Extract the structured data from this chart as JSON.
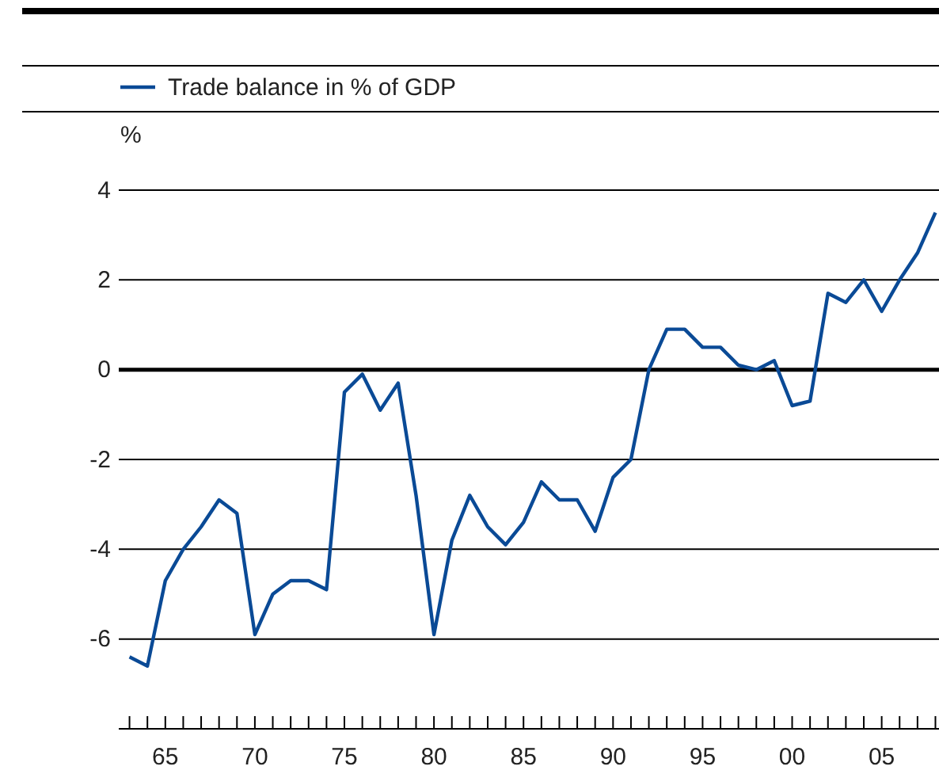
{
  "chart_data": {
    "type": "line",
    "ylabel": "%",
    "legend": "top left",
    "grid": "y",
    "line_style": "solid",
    "marker": "none",
    "x": [
      1963,
      1964,
      1965,
      1966,
      1967,
      1968,
      1969,
      1970,
      1971,
      1972,
      1973,
      1974,
      1975,
      1976,
      1977,
      1978,
      1979,
      1980,
      1981,
      1982,
      1983,
      1984,
      1985,
      1986,
      1987,
      1988,
      1989,
      1990,
      1991,
      1992,
      1993,
      1994,
      1995,
      1996,
      1997,
      1998,
      1999,
      2000,
      2001,
      2002,
      2003,
      2004,
      2005,
      2006,
      2007,
      2008
    ],
    "series": [
      {
        "name": "Trade balance in % of GDP",
        "color": "#0a4a96",
        "values": [
          -6.4,
          -6.6,
          -4.7,
          -4.0,
          -3.5,
          -2.9,
          -3.2,
          -5.9,
          -5.0,
          -4.7,
          -4.7,
          -4.9,
          -0.5,
          -0.1,
          -0.9,
          -0.3,
          -2.8,
          -5.9,
          -3.8,
          -2.8,
          -3.5,
          -3.9,
          -3.4,
          -2.5,
          -2.9,
          -2.9,
          -3.6,
          -2.4,
          -2.0,
          0.0,
          0.9,
          0.9,
          0.5,
          0.5,
          0.1,
          0.0,
          0.2,
          -0.8,
          -0.7,
          1.7,
          1.5,
          2.0,
          1.3,
          2.0,
          2.6,
          3.5
        ]
      }
    ],
    "xlim": [
      1962.4,
      2008.2
    ],
    "ylim": [
      -8,
      4
    ],
    "yticks": [
      -6,
      -4,
      -2,
      0,
      2,
      4
    ],
    "ref_lines": [
      {
        "axis": "y",
        "value": 0,
        "color": "#000000"
      }
    ],
    "xticks": [
      {
        "value": 1965,
        "label": "65"
      },
      {
        "value": 1970,
        "label": "70"
      },
      {
        "value": 1975,
        "label": "75"
      },
      {
        "value": 1980,
        "label": "80"
      },
      {
        "value": 1985,
        "label": "85"
      },
      {
        "value": 1990,
        "label": "90"
      },
      {
        "value": 1995,
        "label": "95"
      },
      {
        "value": 2000,
        "label": "00"
      },
      {
        "value": 2005,
        "label": "05"
      },
      {
        "value": 1963,
        "label": null
      },
      {
        "value": 1964,
        "label": null
      },
      {
        "value": 1966,
        "label": null
      },
      {
        "value": 1967,
        "label": null
      },
      {
        "value": 1968,
        "label": null
      },
      {
        "value": 1969,
        "label": null
      },
      {
        "value": 1971,
        "label": null
      },
      {
        "value": 1972,
        "label": null
      },
      {
        "value": 1973,
        "label": null
      },
      {
        "value": 1974,
        "label": null
      },
      {
        "value": 1976,
        "label": null
      },
      {
        "value": 1977,
        "label": null
      },
      {
        "value": 1978,
        "label": null
      },
      {
        "value": 1979,
        "label": null
      },
      {
        "value": 1981,
        "label": null
      },
      {
        "value": 1982,
        "label": null
      },
      {
        "value": 1983,
        "label": null
      },
      {
        "value": 1984,
        "label": null
      },
      {
        "value": 1986,
        "label": null
      },
      {
        "value": 1987,
        "label": null
      },
      {
        "value": 1988,
        "label": null
      },
      {
        "value": 1989,
        "label": null
      },
      {
        "value": 1991,
        "label": null
      },
      {
        "value": 1992,
        "label": null
      },
      {
        "value": 1993,
        "label": null
      },
      {
        "value": 1994,
        "label": null
      },
      {
        "value": 1996,
        "label": null
      },
      {
        "value": 1997,
        "label": null
      },
      {
        "value": 1998,
        "label": null
      },
      {
        "value": 1999,
        "label": null
      },
      {
        "value": 2001,
        "label": null
      },
      {
        "value": 2002,
        "label": null
      },
      {
        "value": 2003,
        "label": null
      },
      {
        "value": 2004,
        "label": null
      },
      {
        "value": 2006,
        "label": null
      },
      {
        "value": 2007,
        "label": null
      },
      {
        "value": 2008,
        "label": null
      }
    ]
  }
}
